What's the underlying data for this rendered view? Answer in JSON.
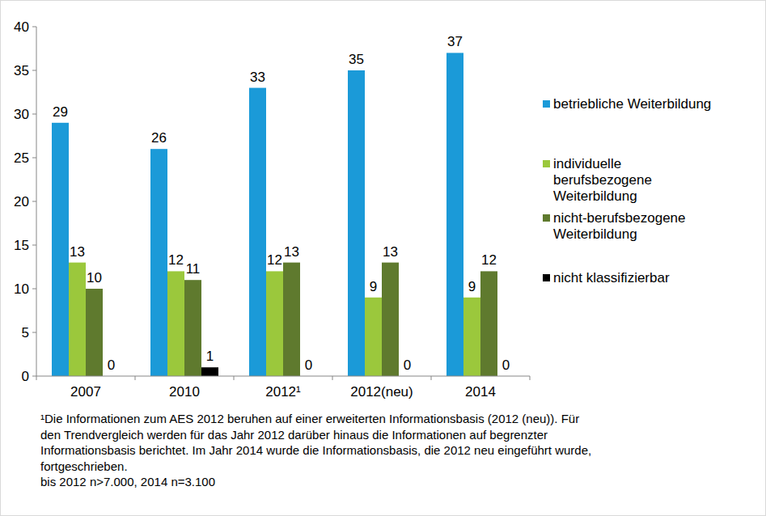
{
  "chart_data": {
    "type": "bar",
    "categories": [
      "2007",
      "2010",
      "2012¹",
      "2012(neu)",
      "2014"
    ],
    "series": [
      {
        "name": "betriebliche Weiterbildung",
        "color": "#1b9ad8",
        "values": [
          29,
          26,
          33,
          35,
          37
        ]
      },
      {
        "name": "individuelle berufsbezogene Weiterbildung",
        "color": "#9bc83c",
        "values": [
          13,
          12,
          12,
          9,
          9
        ]
      },
      {
        "name": "nicht-berufsbezogene Weiterbildung",
        "color": "#5f7a2e",
        "values": [
          10,
          11,
          13,
          13,
          12
        ]
      },
      {
        "name": "nicht klassifizierbar",
        "color": "#000000",
        "values": [
          0,
          1,
          0,
          0,
          0
        ]
      }
    ],
    "ylim": [
      0,
      40
    ],
    "yticks": [
      0,
      5,
      10,
      15,
      20,
      25,
      30,
      35,
      40
    ],
    "grid": false,
    "legend": "right",
    "data_labels": true,
    "annotations": [
      "¹Die Informationen zum AES 2012 beruhen auf einer erweiterten Informationsbasis (2012 (neu)). Für",
      "den Trendvergleich werden für das Jahr 2012 darüber hinaus die Informationen auf begrenzter",
      "Informationsbasis berichtet. Im Jahr 2014 wurde die Informationsbasis, die 2012 neu eingeführt wurde,",
      "fortgeschrieben.",
      "bis 2012 n>7.000, 2014 n=3.100"
    ]
  }
}
